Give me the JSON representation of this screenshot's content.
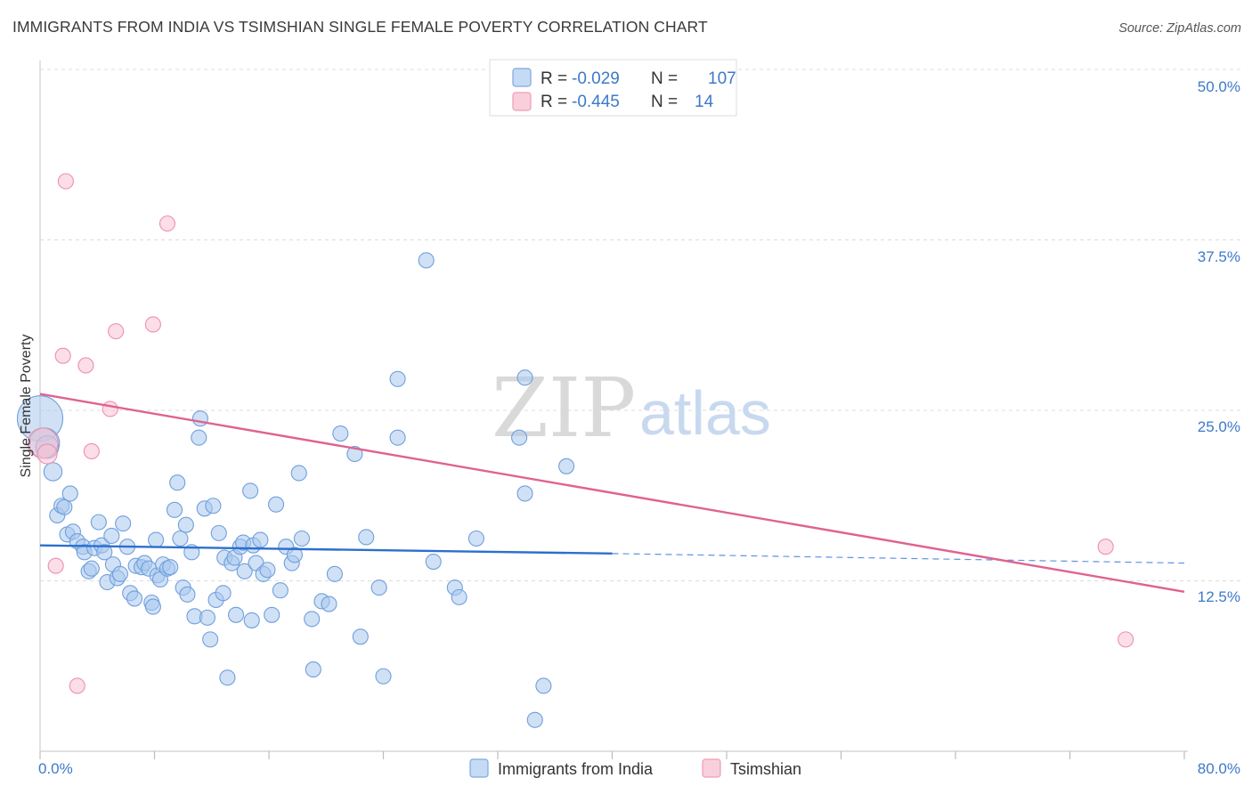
{
  "title": "IMMIGRANTS FROM INDIA VS TSIMSHIAN SINGLE FEMALE POVERTY CORRELATION CHART",
  "source": "Source: ZipAtlas.com",
  "watermark": {
    "zip": "ZIP",
    "atlas": "atlas"
  },
  "legend": {
    "rows": [
      {
        "r_label": "R =",
        "r_value": "-0.029",
        "n_label": "N =",
        "n_value": "107",
        "color": "#a9c8ee"
      },
      {
        "r_label": "R =",
        "r_value": "-0.445",
        "n_label": "N =",
        "n_value": "14",
        "color": "#f7b9cc"
      }
    ]
  },
  "bottom_legend": [
    "Immigrants from India",
    "Tsimshian"
  ],
  "colors": {
    "blue_fill": "#a9c8ee",
    "blue_stroke": "#6f9fdc",
    "blue_line": "#2c6fce",
    "pink_fill": "#f7c3d3",
    "pink_stroke": "#ee8fae",
    "pink_line": "#e0628f",
    "grid": "#dcdcdc",
    "tick_text": "#3d79c9"
  },
  "chart_data": {
    "type": "scatter",
    "title": "IMMIGRANTS FROM INDIA VS TSIMSHIAN SINGLE FEMALE POVERTY CORRELATION CHART",
    "xlabel": "",
    "ylabel": "Single Female Poverty",
    "xlim": [
      0,
      80
    ],
    "ylim": [
      0,
      50
    ],
    "x_tick_labels": [
      "0.0%",
      "80.0%"
    ],
    "y_tick_labels": [
      "12.5%",
      "25.0%",
      "37.5%",
      "50.0%"
    ],
    "y_ticks": [
      12.5,
      25.0,
      37.5,
      50.0
    ],
    "grid": true,
    "legend_position": "top-center",
    "series": [
      {
        "name": "Immigrants from India",
        "r": -0.029,
        "n": 107,
        "trend": {
          "x0": 0,
          "y0": 15.1,
          "x1": 40,
          "y1": 14.5,
          "dashed_to_x": 80,
          "dashed_to_y": 13.8
        },
        "points": [
          [
            0.0,
            24.4,
            3
          ],
          [
            0.3,
            22.6,
            2
          ],
          [
            0.5,
            22.3,
            1.5
          ],
          [
            0.9,
            20.5,
            1.2
          ],
          [
            1.2,
            17.3,
            1
          ],
          [
            1.5,
            18.0,
            1
          ],
          [
            1.7,
            17.9,
            1
          ],
          [
            2.1,
            18.9,
            1
          ],
          [
            1.9,
            15.9,
            1
          ],
          [
            2.3,
            16.1,
            1
          ],
          [
            2.6,
            15.4,
            1
          ],
          [
            3.0,
            15.0,
            1
          ],
          [
            3.1,
            14.6,
            1
          ],
          [
            3.4,
            13.2,
            1
          ],
          [
            3.6,
            13.4,
            1
          ],
          [
            3.8,
            14.9,
            1
          ],
          [
            4.1,
            16.8,
            1
          ],
          [
            4.3,
            15.1,
            1
          ],
          [
            4.5,
            14.6,
            1
          ],
          [
            4.7,
            12.4,
            1
          ],
          [
            5.0,
            15.8,
            1
          ],
          [
            5.1,
            13.7,
            1
          ],
          [
            5.4,
            12.7,
            1
          ],
          [
            5.6,
            13.0,
            1
          ],
          [
            5.8,
            16.7,
            1
          ],
          [
            6.1,
            15.0,
            1
          ],
          [
            6.3,
            11.6,
            1
          ],
          [
            6.6,
            11.2,
            1
          ],
          [
            6.7,
            13.6,
            1
          ],
          [
            7.1,
            13.5,
            1
          ],
          [
            7.3,
            13.8,
            1
          ],
          [
            7.6,
            13.4,
            1
          ],
          [
            7.8,
            10.9,
            1
          ],
          [
            7.9,
            10.6,
            1
          ],
          [
            8.1,
            15.5,
            1
          ],
          [
            8.2,
            12.9,
            1
          ],
          [
            8.4,
            12.6,
            1
          ],
          [
            8.6,
            13.7,
            1
          ],
          [
            8.9,
            13.4,
            1
          ],
          [
            9.1,
            13.5,
            1
          ],
          [
            9.4,
            17.7,
            1
          ],
          [
            9.6,
            19.7,
            1
          ],
          [
            9.8,
            15.6,
            1
          ],
          [
            10.0,
            12.0,
            1
          ],
          [
            10.2,
            16.6,
            1
          ],
          [
            10.3,
            11.5,
            1
          ],
          [
            10.6,
            14.6,
            1
          ],
          [
            10.8,
            9.9,
            1
          ],
          [
            11.1,
            23.0,
            1
          ],
          [
            11.2,
            24.4,
            1
          ],
          [
            11.5,
            17.8,
            1
          ],
          [
            11.7,
            9.8,
            1
          ],
          [
            11.9,
            8.2,
            1
          ],
          [
            12.1,
            18.0,
            1
          ],
          [
            12.3,
            11.1,
            1
          ],
          [
            12.5,
            16.0,
            1
          ],
          [
            12.8,
            11.6,
            1
          ],
          [
            12.9,
            14.2,
            1
          ],
          [
            13.1,
            5.4,
            1
          ],
          [
            13.4,
            13.8,
            1
          ],
          [
            13.6,
            14.2,
            1
          ],
          [
            13.7,
            10.0,
            1
          ],
          [
            14.0,
            15.0,
            1
          ],
          [
            14.2,
            15.3,
            1
          ],
          [
            14.3,
            13.2,
            1
          ],
          [
            14.7,
            19.1,
            1
          ],
          [
            14.8,
            9.6,
            1
          ],
          [
            14.9,
            15.1,
            1
          ],
          [
            15.1,
            13.8,
            1
          ],
          [
            15.4,
            15.5,
            1
          ],
          [
            15.6,
            13.0,
            1
          ],
          [
            15.9,
            13.3,
            1
          ],
          [
            16.2,
            10.0,
            1
          ],
          [
            16.5,
            18.1,
            1
          ],
          [
            16.8,
            11.8,
            1
          ],
          [
            17.2,
            15.0,
            1
          ],
          [
            17.6,
            13.8,
            1
          ],
          [
            17.8,
            14.4,
            1
          ],
          [
            18.1,
            20.4,
            1
          ],
          [
            18.3,
            15.6,
            1
          ],
          [
            19.0,
            9.7,
            1
          ],
          [
            19.1,
            6.0,
            1
          ],
          [
            19.7,
            11.0,
            1
          ],
          [
            20.2,
            10.8,
            1
          ],
          [
            20.6,
            13.0,
            1
          ],
          [
            21.0,
            23.3,
            1
          ],
          [
            22.0,
            21.8,
            1
          ],
          [
            22.4,
            8.4,
            1
          ],
          [
            22.8,
            15.7,
            1
          ],
          [
            23.7,
            12.0,
            1
          ],
          [
            24.0,
            5.5,
            1
          ],
          [
            25.0,
            27.3,
            1
          ],
          [
            25.0,
            23.0,
            1
          ],
          [
            27.0,
            36.0,
            1
          ],
          [
            27.5,
            13.9,
            1
          ],
          [
            29.0,
            12.0,
            1
          ],
          [
            29.3,
            11.3,
            1
          ],
          [
            30.5,
            15.6,
            1
          ],
          [
            33.5,
            23.0,
            1
          ],
          [
            33.9,
            27.4,
            1
          ],
          [
            33.9,
            18.9,
            1
          ],
          [
            35.2,
            4.8,
            1
          ],
          [
            36.8,
            20.9,
            1
          ],
          [
            34.6,
            2.3,
            1
          ]
        ]
      },
      {
        "name": "Tsimshian",
        "r": -0.445,
        "n": 14,
        "trend": {
          "x0": 0,
          "y0": 26.2,
          "x1": 80,
          "y1": 11.7
        },
        "points": [
          [
            0.2,
            22.6,
            2
          ],
          [
            0.5,
            21.8,
            1.3
          ],
          [
            1.1,
            13.6,
            1
          ],
          [
            1.6,
            29.0,
            1
          ],
          [
            1.8,
            41.8,
            1
          ],
          [
            2.6,
            4.8,
            1
          ],
          [
            3.2,
            28.3,
            1
          ],
          [
            3.6,
            22.0,
            1
          ],
          [
            4.9,
            25.1,
            1
          ],
          [
            5.3,
            30.8,
            1
          ],
          [
            7.9,
            31.3,
            1
          ],
          [
            8.9,
            38.7,
            1
          ],
          [
            74.5,
            15.0,
            1
          ],
          [
            75.9,
            8.2,
            1
          ]
        ]
      }
    ]
  }
}
